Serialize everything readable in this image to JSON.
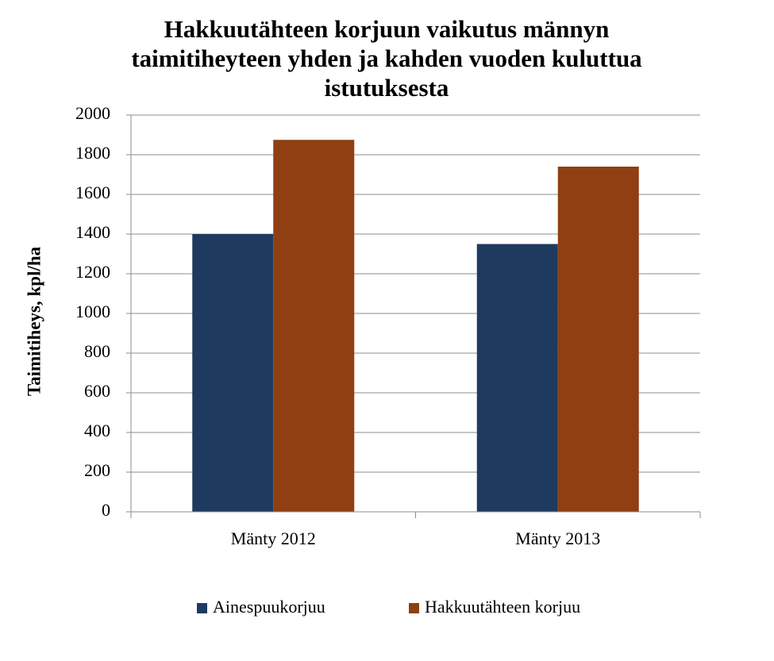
{
  "chart_data": {
    "type": "bar",
    "title": "Hakkuutähteen korjuun vaikutus männyn taimitiheyteen yhden ja kahden vuoden kuluttua istutuksesta",
    "y_label": "Taimitiheys,  kpl/ha",
    "categories": [
      "Mänty 2012",
      "Mänty 2013"
    ],
    "series": [
      {
        "name": "Ainespuukorjuu",
        "color": "#1f3a5f",
        "values": [
          1400,
          1350
        ]
      },
      {
        "name": "Hakkuutähteen korjuu",
        "color": "#8f3f12",
        "values": [
          1875,
          1740
        ]
      }
    ],
    "ylim": [
      0,
      2000
    ],
    "yticks": [
      0,
      200,
      400,
      600,
      800,
      1000,
      1200,
      1400,
      1600,
      1800,
      2000
    ],
    "grid": true,
    "legend": "bottom"
  }
}
